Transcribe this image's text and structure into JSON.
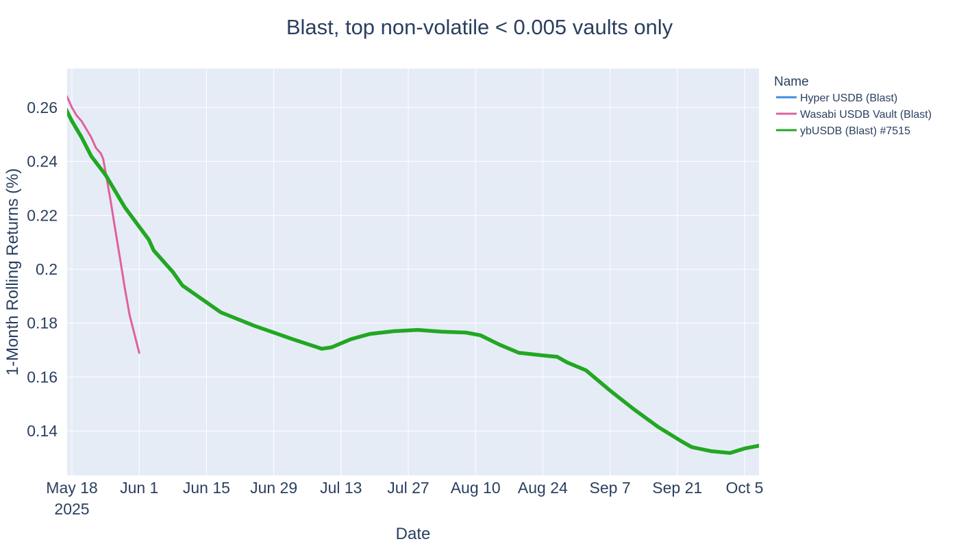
{
  "chart_data": {
    "type": "line",
    "title": "Blast, top non-volatile < 0.005 vaults only",
    "xlabel": "Date",
    "ylabel": "1-Month Rolling Returns (%)",
    "xlim": [
      "2025-05-17",
      "2025-10-08"
    ],
    "ylim": [
      0.1235,
      0.2745
    ],
    "grid": true,
    "legend_position": "right",
    "legend_title": "Name",
    "x_ticks": [
      {
        "date": "2025-05-18",
        "label": "May 18",
        "sublabel": "2025"
      },
      {
        "date": "2025-06-01",
        "label": "Jun 1"
      },
      {
        "date": "2025-06-15",
        "label": "Jun 15"
      },
      {
        "date": "2025-06-29",
        "label": "Jun 29"
      },
      {
        "date": "2025-07-13",
        "label": "Jul 13"
      },
      {
        "date": "2025-07-27",
        "label": "Jul 27"
      },
      {
        "date": "2025-08-10",
        "label": "Aug 10"
      },
      {
        "date": "2025-08-24",
        "label": "Aug 24"
      },
      {
        "date": "2025-09-07",
        "label": "Sep 7"
      },
      {
        "date": "2025-09-21",
        "label": "Sep 21"
      },
      {
        "date": "2025-10-05",
        "label": "Oct 5"
      }
    ],
    "y_ticks": [
      {
        "value": 0.14,
        "label": "0.14"
      },
      {
        "value": 0.16,
        "label": "0.16"
      },
      {
        "value": 0.18,
        "label": "0.18"
      },
      {
        "value": 0.2,
        "label": "0.2"
      },
      {
        "value": 0.22,
        "label": "0.22"
      },
      {
        "value": 0.24,
        "label": "0.24"
      },
      {
        "value": 0.26,
        "label": "0.26"
      }
    ],
    "series": [
      {
        "name": "Hyper USDB (Blast)",
        "color": "#3b8ee0",
        "points": []
      },
      {
        "name": "Wasabi USDB Vault (Blast)",
        "color": "#e0609e",
        "points": [
          [
            "2025-05-16",
            0.267
          ],
          [
            "2025-05-17",
            0.264
          ],
          [
            "2025-05-18",
            0.26
          ],
          [
            "2025-05-19",
            0.257
          ],
          [
            "2025-05-20",
            0.255
          ],
          [
            "2025-05-21",
            0.252
          ],
          [
            "2025-05-22",
            0.249
          ],
          [
            "2025-05-23",
            0.245
          ],
          [
            "2025-05-24",
            0.243
          ],
          [
            "2025-05-24 12:00",
            0.241
          ],
          [
            "2025-05-25",
            0.236
          ],
          [
            "2025-05-26",
            0.226
          ],
          [
            "2025-05-27",
            0.215
          ],
          [
            "2025-05-28",
            0.204
          ],
          [
            "2025-05-29",
            0.193
          ],
          [
            "2025-05-30",
            0.183
          ],
          [
            "2025-05-31",
            0.176
          ],
          [
            "2025-06-01",
            0.169
          ]
        ]
      },
      {
        "name": "ybUSDB (Blast) #7515",
        "color": "#22a722",
        "points": [
          [
            "2025-05-16",
            0.262
          ],
          [
            "2025-05-18",
            0.255
          ],
          [
            "2025-05-20",
            0.249
          ],
          [
            "2025-05-22",
            0.242
          ],
          [
            "2025-05-25",
            0.235
          ],
          [
            "2025-05-29",
            0.223
          ],
          [
            "2025-06-03",
            0.211
          ],
          [
            "2025-06-04",
            0.207
          ],
          [
            "2025-06-08",
            0.199
          ],
          [
            "2025-06-10",
            0.194
          ],
          [
            "2025-06-18",
            0.184
          ],
          [
            "2025-06-25",
            0.179
          ],
          [
            "2025-07-03",
            0.174
          ],
          [
            "2025-07-09",
            0.1705
          ],
          [
            "2025-07-11",
            0.171
          ],
          [
            "2025-07-15",
            0.174
          ],
          [
            "2025-07-19",
            0.176
          ],
          [
            "2025-07-24",
            0.177
          ],
          [
            "2025-07-29",
            0.1775
          ],
          [
            "2025-08-03",
            0.1768
          ],
          [
            "2025-08-08",
            0.1765
          ],
          [
            "2025-08-11",
            0.1755
          ],
          [
            "2025-08-15",
            0.172
          ],
          [
            "2025-08-19",
            0.169
          ],
          [
            "2025-08-24",
            0.168
          ],
          [
            "2025-08-27",
            0.1675
          ],
          [
            "2025-08-29",
            0.1655
          ],
          [
            "2025-09-02",
            0.1625
          ],
          [
            "2025-09-07",
            0.155
          ],
          [
            "2025-09-12",
            0.148
          ],
          [
            "2025-09-17",
            0.1415
          ],
          [
            "2025-09-22",
            0.136
          ],
          [
            "2025-09-24",
            0.134
          ],
          [
            "2025-09-28",
            0.1325
          ],
          [
            "2025-10-02",
            0.1318
          ],
          [
            "2025-10-05",
            0.1335
          ],
          [
            "2025-10-08",
            0.1345
          ]
        ]
      }
    ]
  }
}
